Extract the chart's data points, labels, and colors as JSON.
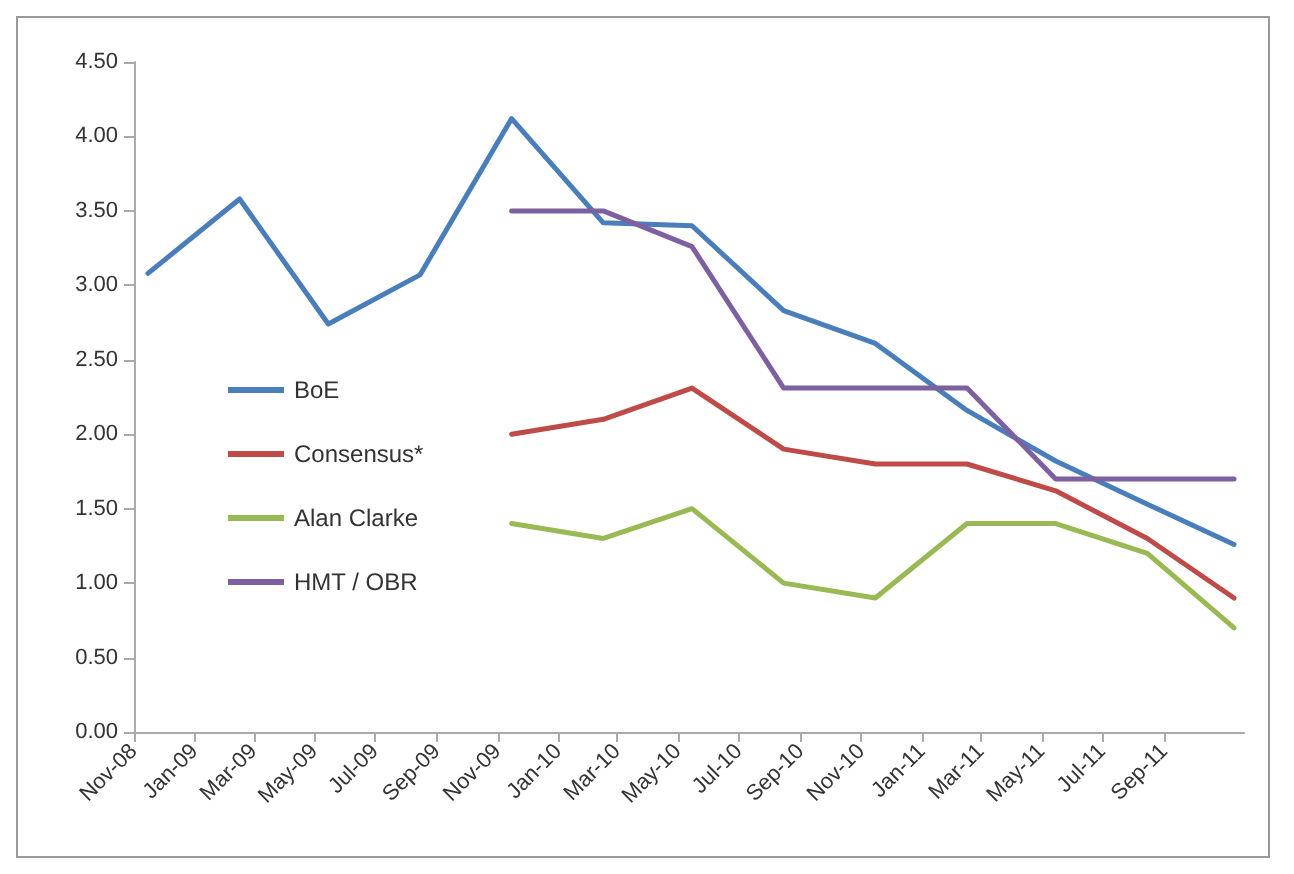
{
  "chart_data": {
    "type": "line",
    "legend": "left",
    "grid": false,
    "marker": "none",
    "line_style": "solid",
    "xlim": [
      "2008-11-01",
      "2011-11-20"
    ],
    "xticks": [
      {
        "value": "2008-11-01",
        "label": "Nov-08"
      },
      {
        "value": "2009-01-01",
        "label": "Jan-09"
      },
      {
        "value": "2009-03-01",
        "label": "Mar-09"
      },
      {
        "value": "2009-05-01",
        "label": "May-09"
      },
      {
        "value": "2009-07-01",
        "label": "Jul-09"
      },
      {
        "value": "2009-09-01",
        "label": "Sep-09"
      },
      {
        "value": "2009-11-01",
        "label": "Nov-09"
      },
      {
        "value": "2010-01-01",
        "label": "Jan-10"
      },
      {
        "value": "2010-03-01",
        "label": "Mar-10"
      },
      {
        "value": "2010-05-01",
        "label": "May-10"
      },
      {
        "value": "2010-07-01",
        "label": "Jul-10"
      },
      {
        "value": "2010-09-01",
        "label": "Sep-10"
      },
      {
        "value": "2010-11-01",
        "label": "Nov-10"
      },
      {
        "value": "2011-01-01",
        "label": "Jan-11"
      },
      {
        "value": "2011-03-01",
        "label": "Mar-11"
      },
      {
        "value": "2011-05-01",
        "label": "May-11"
      },
      {
        "value": "2011-07-01",
        "label": "Jul-11"
      },
      {
        "value": "2011-09-01",
        "label": "Sep-11"
      }
    ],
    "ylim": [
      0,
      4.5
    ],
    "yticks": [
      {
        "value": 0,
        "label": "0.00"
      },
      {
        "value": 0.5,
        "label": "0.50"
      },
      {
        "value": 1,
        "label": "1.00"
      },
      {
        "value": 1.5,
        "label": "1.50"
      },
      {
        "value": 2,
        "label": "2.00"
      },
      {
        "value": 2.5,
        "label": "2.50"
      },
      {
        "value": 3,
        "label": "3.00"
      },
      {
        "value": 3.5,
        "label": "3.50"
      },
      {
        "value": 4,
        "label": "4.00"
      },
      {
        "value": 4.5,
        "label": "4.50"
      }
    ],
    "x": [
      "2008-11-15",
      "2009-02-15",
      "2009-05-15",
      "2009-08-15",
      "2009-11-15",
      "2010-02-15",
      "2010-05-15",
      "2010-08-15",
      "2010-11-15",
      "2011-02-15",
      "2011-05-15",
      "2011-08-15",
      "2011-11-10"
    ],
    "series": [
      {
        "name": "BoE",
        "color": "#4a7ebb",
        "values": [
          3.08,
          3.58,
          2.74,
          3.07,
          4.12,
          3.42,
          3.4,
          2.83,
          2.61,
          2.16,
          1.82,
          1.53,
          1.26
        ]
      },
      {
        "name": "Consensus*",
        "color": "#be4b48",
        "values": [
          null,
          null,
          null,
          null,
          2.0,
          2.1,
          2.31,
          1.9,
          1.8,
          1.8,
          1.62,
          1.3,
          0.9
        ]
      },
      {
        "name": "Alan Clarke",
        "color": "#98b954",
        "values": [
          null,
          null,
          null,
          null,
          1.4,
          1.3,
          1.5,
          1.0,
          0.9,
          1.4,
          1.4,
          1.2,
          0.7
        ]
      },
      {
        "name": "HMT / OBR",
        "color": "#7d60a0",
        "values": [
          null,
          null,
          null,
          null,
          3.5,
          3.5,
          3.26,
          2.31,
          2.31,
          2.31,
          1.7,
          1.7,
          1.7
        ]
      }
    ]
  }
}
